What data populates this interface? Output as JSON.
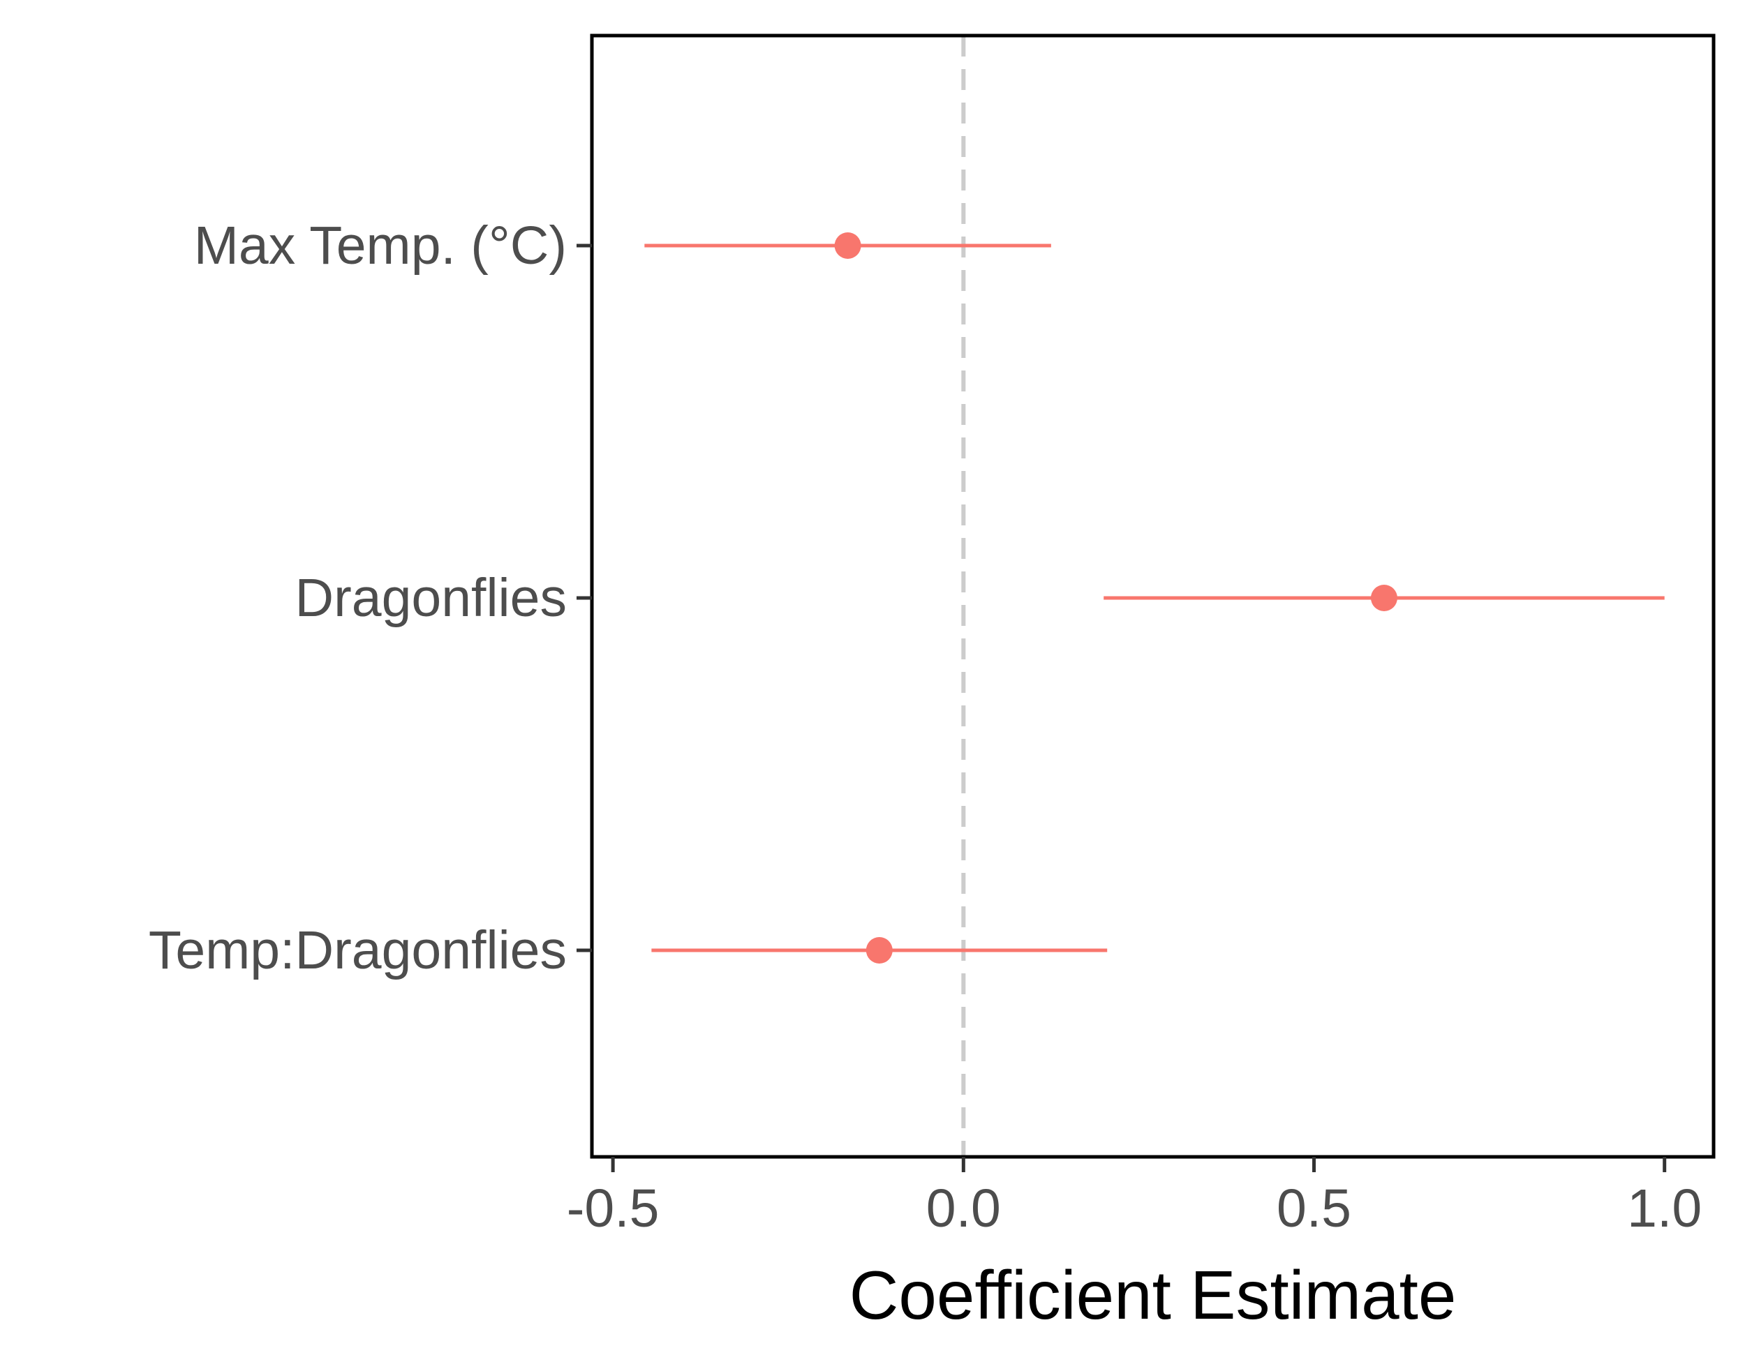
{
  "chart_data": {
    "type": "scatter",
    "subtype": "coefficient-plot",
    "title": "",
    "xlabel": "Coefficient Estimate",
    "ylabel": "",
    "xlim": [
      -0.53,
      1.07
    ],
    "x_ticks": [
      -0.5,
      0.0,
      0.5,
      1.0
    ],
    "x_tick_labels": [
      "-0.5",
      "0.0",
      "0.5",
      "1.0"
    ],
    "reference_line": {
      "x": 0.0,
      "style": "dashed",
      "color": "#cccccc"
    },
    "categories": [
      "Max Temp. (°C)",
      "Dragonflies",
      "Temp:Dragonflies"
    ],
    "estimates": [
      -0.165,
      0.6,
      -0.12
    ],
    "ci_lower": [
      -0.455,
      0.2,
      -0.445
    ],
    "ci_upper": [
      0.125,
      1.0,
      0.205
    ],
    "point_color": "#f8766d",
    "grid": false,
    "legend": "none"
  }
}
